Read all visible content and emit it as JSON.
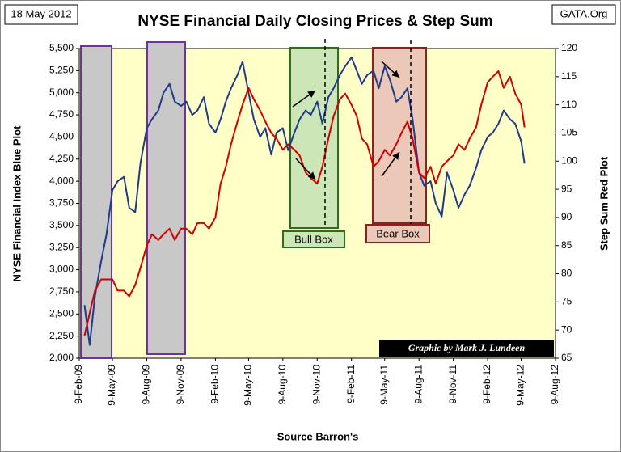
{
  "chart_data": {
    "type": "line",
    "title": "NYSE Financial Daily Closing Prices & Step Sum",
    "date_label": "18 May 2012",
    "source_tag": "GATA.Org",
    "y_label": "NYSE Financial Index Blue Plot",
    "y2_label": "Step Sum Red Plot",
    "x_label": "Source Barron's",
    "credit": "Graphic by Mark J. Lundeen",
    "annotations": [
      "Bull Box",
      "Bear Box"
    ],
    "x": [
      "2009-02-23",
      "2009-03-09",
      "2009-03-23",
      "2009-04-09",
      "2009-04-23",
      "2009-05-09",
      "2009-05-23",
      "2009-06-09",
      "2009-06-23",
      "2009-07-09",
      "2009-07-23",
      "2009-08-09",
      "2009-08-23",
      "2009-09-09",
      "2009-09-23",
      "2009-10-09",
      "2009-10-23",
      "2009-11-09",
      "2009-11-23",
      "2009-12-09",
      "2009-12-23",
      "2010-01-09",
      "2010-01-23",
      "2010-02-09",
      "2010-02-23",
      "2010-03-09",
      "2010-03-23",
      "2010-04-09",
      "2010-04-23",
      "2010-05-09",
      "2010-05-23",
      "2010-06-09",
      "2010-06-23",
      "2010-07-09",
      "2010-07-23",
      "2010-08-09",
      "2010-08-23",
      "2010-09-09",
      "2010-09-23",
      "2010-10-09",
      "2010-10-23",
      "2010-11-09",
      "2010-11-23",
      "2010-12-09",
      "2010-12-23",
      "2011-01-09",
      "2011-01-23",
      "2011-02-09",
      "2011-02-23",
      "2011-03-09",
      "2011-03-23",
      "2011-04-09",
      "2011-04-23",
      "2011-05-09",
      "2011-05-23",
      "2011-06-09",
      "2011-06-23",
      "2011-07-09",
      "2011-07-23",
      "2011-08-09",
      "2011-08-23",
      "2011-09-09",
      "2011-09-23",
      "2011-10-09",
      "2011-10-23",
      "2011-11-09",
      "2011-11-23",
      "2011-12-09",
      "2011-12-23",
      "2012-01-09",
      "2012-01-23",
      "2012-02-09",
      "2012-02-23",
      "2012-03-09",
      "2012-03-23",
      "2012-04-09",
      "2012-04-23",
      "2012-05-09",
      "2012-05-18"
    ],
    "series": [
      {
        "name": "NYSE Financial Index",
        "color": "#1f3a8a",
        "axis": "y",
        "values": [
          2600,
          2150,
          2700,
          3100,
          3400,
          3900,
          4000,
          4050,
          3700,
          3650,
          4200,
          4600,
          4700,
          4800,
          5000,
          5100,
          4900,
          4850,
          4900,
          4750,
          4800,
          4950,
          4650,
          4550,
          4700,
          4900,
          5050,
          5200,
          5350,
          5000,
          4700,
          4500,
          4600,
          4300,
          4550,
          4600,
          4350,
          4550,
          4700,
          4800,
          4750,
          4900,
          4650,
          4950,
          5050,
          5200,
          5300,
          5400,
          5250,
          5100,
          5200,
          5250,
          5050,
          5300,
          5150,
          4900,
          4950,
          5050,
          4700,
          4100,
          3950,
          4000,
          3750,
          3600,
          4100,
          3900,
          3700,
          3850,
          3950,
          4150,
          4350,
          4500,
          4550,
          4650,
          4800,
          4700,
          4650,
          4450,
          4200
        ]
      },
      {
        "name": "Step Sum",
        "color": "#d40000",
        "axis": "y2",
        "values": [
          69,
          73,
          77,
          79,
          79,
          79,
          77,
          77,
          76,
          78,
          81,
          85,
          87,
          86,
          87,
          88,
          86,
          88,
          88,
          87,
          89,
          89,
          88,
          90,
          96,
          99,
          103,
          107,
          110,
          113,
          111,
          109,
          107,
          105,
          104,
          102,
          103,
          102,
          101,
          98,
          97,
          96,
          99,
          104,
          108,
          111,
          112,
          110,
          108,
          104,
          103,
          99,
          100,
          102,
          101,
          103,
          105,
          107,
          104,
          98,
          97,
          99,
          96,
          99,
          100,
          101,
          103,
          102,
          104,
          106,
          110,
          114,
          115,
          116,
          113,
          115,
          112,
          110,
          106
        ]
      }
    ],
    "xlim": [
      "2009-02-09",
      "2012-08-09"
    ],
    "xticks": [
      {
        "value": "2009-02-09",
        "label": "9-Feb-09"
      },
      {
        "value": "2009-05-09",
        "label": "9-May-09"
      },
      {
        "value": "2009-08-09",
        "label": "9-Aug-09"
      },
      {
        "value": "2009-11-09",
        "label": "9-Nov-09"
      },
      {
        "value": "2010-02-09",
        "label": "9-Feb-10"
      },
      {
        "value": "2010-05-09",
        "label": "9-May-10"
      },
      {
        "value": "2010-08-09",
        "label": "9-Aug-10"
      },
      {
        "value": "2010-11-09",
        "label": "9-Nov-10"
      },
      {
        "value": "2011-02-09",
        "label": "9-Feb-11"
      },
      {
        "value": "2011-05-09",
        "label": "9-May-11"
      },
      {
        "value": "2011-08-09",
        "label": "9-Aug-11"
      },
      {
        "value": "2011-11-09",
        "label": "9-Nov-11"
      },
      {
        "value": "2012-02-09",
        "label": "9-Feb-12"
      },
      {
        "value": "2012-05-09",
        "label": "9-May-12"
      },
      {
        "value": "2012-08-09",
        "label": "9-Aug-12"
      }
    ],
    "ylim": [
      2000,
      5500
    ],
    "yticks": [
      {
        "value": 2000,
        "label": "2,000"
      },
      {
        "value": 2250,
        "label": "2,250"
      },
      {
        "value": 2500,
        "label": "2,500"
      },
      {
        "value": 2750,
        "label": "2,750"
      },
      {
        "value": 3000,
        "label": "3,000"
      },
      {
        "value": 3250,
        "label": "3,250"
      },
      {
        "value": 3500,
        "label": "3,500"
      },
      {
        "value": 3750,
        "label": "3,750"
      },
      {
        "value": 4000,
        "label": "4,000"
      },
      {
        "value": 4250,
        "label": "4,250"
      },
      {
        "value": 4500,
        "label": "4,500"
      },
      {
        "value": 4750,
        "label": "4,750"
      },
      {
        "value": 5000,
        "label": "5,000"
      },
      {
        "value": 5250,
        "label": "5,250"
      },
      {
        "value": 5500,
        "label": "5,500"
      }
    ],
    "y2lim": [
      65,
      120
    ],
    "y2ticks": [
      65,
      70,
      75,
      80,
      85,
      90,
      95,
      100,
      105,
      110,
      115,
      120
    ],
    "grid": false
  }
}
